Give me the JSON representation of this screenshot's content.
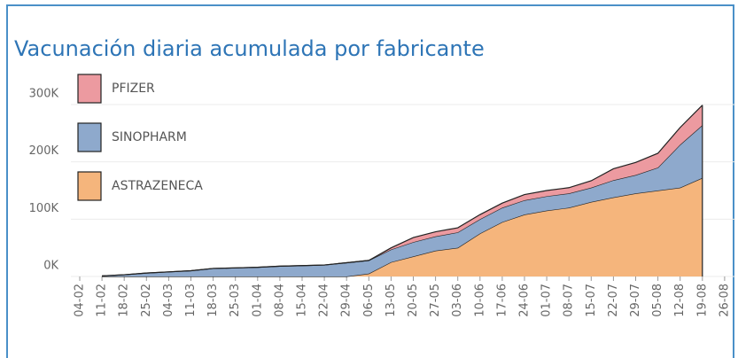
{
  "chart_data": {
    "type": "area",
    "stacked": true,
    "title": "Vacunación diaria acumulada por fabricante",
    "categories": [
      "04-02",
      "11-02",
      "18-02",
      "25-02",
      "04-03",
      "11-03",
      "18-03",
      "25-03",
      "01-04",
      "08-04",
      "15-04",
      "22-04",
      "29-04",
      "06-05",
      "13-05",
      "20-05",
      "27-05",
      "03-06",
      "10-06",
      "17-06",
      "24-06",
      "01-07",
      "08-07",
      "15-07",
      "22-07",
      "29-07",
      "05-08",
      "12-08",
      "19-08",
      "26-08"
    ],
    "series": [
      {
        "name": "ASTRAZENECA",
        "color": "#f5b57c",
        "values": [
          null,
          0,
          0,
          0,
          0,
          0,
          0,
          0,
          0,
          0,
          0,
          0,
          0,
          5000,
          25000,
          35000,
          45000,
          50000,
          75000,
          95000,
          108000,
          115000,
          120000,
          130000,
          138000,
          145000,
          150000,
          155000,
          172000,
          null
        ]
      },
      {
        "name": "SINOPHARM",
        "color": "#8ea9cc",
        "values": [
          null,
          1000,
          3000,
          6000,
          8000,
          10000,
          14000,
          15000,
          16000,
          18000,
          19000,
          20000,
          24000,
          23000,
          22000,
          25000,
          25000,
          27000,
          25000,
          25000,
          25000,
          25000,
          25000,
          25000,
          30000,
          32000,
          40000,
          75000,
          92000,
          null
        ]
      },
      {
        "name": "PFIZER",
        "color": "#ec9aa0",
        "values": [
          null,
          0,
          0,
          0,
          0,
          0,
          0,
          0,
          0,
          0,
          0,
          0,
          0,
          0,
          3000,
          8000,
          8000,
          8000,
          8000,
          8000,
          10000,
          10000,
          10000,
          12000,
          20000,
          22000,
          25000,
          30000,
          35000,
          null
        ]
      }
    ],
    "ylim": [
      0,
      300000
    ],
    "yticks": [
      {
        "value": 0,
        "label": "0K"
      },
      {
        "value": 100000,
        "label": "100K"
      },
      {
        "value": 200000,
        "label": "200K"
      },
      {
        "value": 300000,
        "label": "300K"
      }
    ],
    "grid": true
  }
}
